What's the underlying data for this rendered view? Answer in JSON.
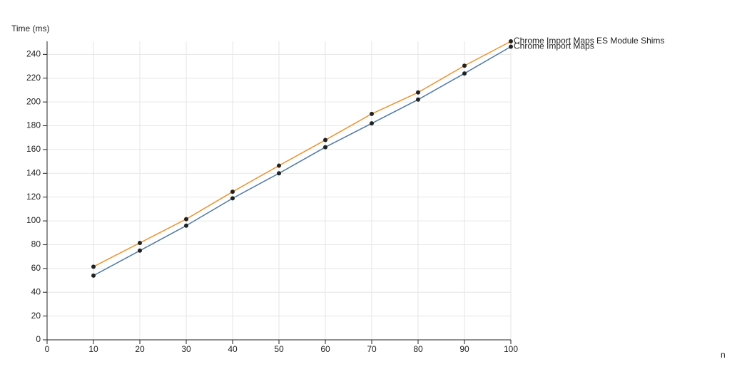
{
  "chart_data": {
    "type": "line",
    "y_label": "Time (ms)",
    "x_label": "n",
    "x": [
      10,
      20,
      30,
      40,
      50,
      60,
      70,
      80,
      90,
      100
    ],
    "series": [
      {
        "name": "Chrome Import Maps ES Module Shims",
        "color": "#f0922f",
        "values": [
          61.5,
          81.5,
          101.5,
          124.5,
          146.5,
          168,
          190,
          208,
          230.5,
          251
        ]
      },
      {
        "name": "Chrome Import Maps",
        "color": "#4e79a7",
        "values": [
          54,
          75,
          96,
          119,
          140,
          162,
          182,
          202,
          224,
          246.5
        ]
      }
    ],
    "xlim": [
      0,
      100
    ],
    "xticks": [
      0,
      10,
      20,
      30,
      40,
      50,
      60,
      70,
      80,
      90,
      100
    ],
    "ylim": [
      0,
      251
    ],
    "yticks": [
      0,
      20,
      40,
      60,
      80,
      100,
      120,
      140,
      160,
      180,
      200,
      220,
      240
    ],
    "grid": true
  }
}
